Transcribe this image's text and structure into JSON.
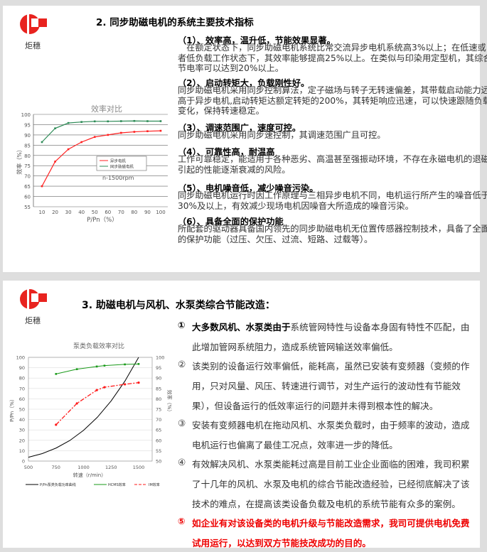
{
  "logo_text": "炬穗",
  "slide1": {
    "title": "2. 同步助磁电机的系统主要技术指标",
    "sections": [
      {
        "heading": "（1）、效率高，温升低，节能效果显著。",
        "lines": [
          "　在额定状态下，同步助磁电机系统比常交流异步电机系统高3%以上；在低速或",
          "者低负载工作状态下，其效率能够提高25%以上。在类似与印染用定型机，其综合",
          "节电率可以达到20%以上。"
        ]
      },
      {
        "heading": "（2）、启动转矩大，负载刚性好。",
        "lines": [
          "同步助磁电机采用同步控制算法，定子磁场与转子无转速偏差，其带载启动能力远",
          "高于异步电机,启动转矩达额定转矩的200%，其转矩响应迅速，可以快速跟随负载",
          "变化，保持转速稳定。"
        ]
      },
      {
        "heading": "（3）、调速范围广，速度可控。",
        "lines": [
          "同步助磁电机采用同步速控制，其调速范围广且可控。"
        ]
      },
      {
        "heading": "（4）、可靠性高，耐温高",
        "lines": [
          "工作可靠稳定，能适用于各种恶劣、高温甚至强振动环境，不存在永磁电机的退磁",
          "引起的性能逐渐衰减的风险。"
        ]
      },
      {
        "heading": "（5）、电机噪音低，减少噪音污染。",
        "lines": [
          "同步助磁电机运行时因工作原理与三相异步电机不同，电机运行所产生的噪音低于",
          "30%及以上，有效减少现场电机因噪音大所造成的噪音污染。"
        ]
      },
      {
        "heading": "（6）、具备全面的保护功能",
        "lines": [
          "所配套的驱动器具备国内领先的同步助磁电机无位置传感器控制技术，具备了全面",
          "的保护功能（过压、欠压、过流、短路、过载等）。"
        ]
      }
    ]
  },
  "slide2": {
    "title": "3. 助磁电机与风机、水泵类综合节能改造：",
    "items": [
      {
        "marker": "①",
        "bold_lead": "大多数风机、水泵类由于",
        "lines": [
          "系统管网特性与设备本身固有特性不匹配，由",
          "此增加管网系统阻力，造成系统管网输送效率偏低。"
        ]
      },
      {
        "marker": "②",
        "lines": [
          "该类别的设备运行效率偏低，能耗高，虽然已安装有变频器（变频的作",
          "用，只对风量、风压、转速进行调节，对生产运行的波动性有节能效",
          "果），但设备运行的低效率运行的问题并未得到根本性的解决。"
        ]
      },
      {
        "marker": "③",
        "lines": [
          "安装有变频器电机在拖动风机、水泵类负载时，由于频率的波动，造成",
          "电机运行也偏离了最佳工况点，效率进一步的降低。"
        ]
      },
      {
        "marker": "④",
        "lines": [
          "有效解决风机、水泵类能耗过高是目前工业企业面临的困难，我司积累",
          "了十几年的风机、水泵及电机的综合节能改造经验，已经彻底解决了该",
          "技术的难点，在提高该类设备负载及电机的系统节能有众多的案例。"
        ]
      },
      {
        "marker": "⑤",
        "highlight": true,
        "lines": [
          "如企业有对该设备类的电机升级与节能改造需求，我司可提供电机免费",
          "试用运行，以达到双方节能技改成功的目的。"
        ]
      }
    ]
  },
  "chart_data": [
    {
      "type": "line",
      "title": "效率对比",
      "xlabel": "P/Pn（%）",
      "ylabel": "效率（%）",
      "annotation": "n-1500rpm",
      "x": [
        10,
        20,
        30,
        40,
        50,
        60,
        70,
        80,
        90,
        100
      ],
      "ylim": [
        55,
        100
      ],
      "yticks": [
        55,
        60,
        65,
        70,
        75,
        80,
        85,
        90,
        95,
        100
      ],
      "grid": true,
      "legend": "center-right",
      "series": [
        {
          "name": "异步电机",
          "color": "#ff2020",
          "values": [
            65,
            77,
            83,
            86.5,
            89,
            90,
            91,
            91.5,
            91.8,
            92
          ]
        },
        {
          "name": "同步助磁电机",
          "color": "#2e8b57",
          "values": [
            86.5,
            93.2,
            95.8,
            96.3,
            96.6,
            96.6,
            96.7,
            96.8,
            96.7,
            96.7
          ]
        }
      ]
    },
    {
      "type": "line",
      "title": "泵类负载效率对比",
      "xlabel": "转速（r/min）",
      "ylabel": "P/Pn（%）",
      "ylabel_right": "效率（%）",
      "xlim": [
        500,
        1625
      ],
      "xticks": [
        500,
        750,
        1000,
        1250,
        1500
      ],
      "ylim": [
        0,
        100
      ],
      "yticks": [
        0,
        10,
        20,
        30,
        40,
        50,
        60,
        70,
        80,
        90,
        100
      ],
      "ylim_right": [
        50,
        100
      ],
      "yticks_right": [
        50,
        55,
        60,
        65,
        70,
        75,
        80,
        85,
        90,
        95,
        100
      ],
      "grid": true,
      "legend": "bottom",
      "series": [
        {
          "name": "P/Pn泵类负载功率曲线",
          "axis": "left",
          "color": "#000000",
          "x": [
            500,
            625,
            750,
            875,
            1000,
            1125,
            1250,
            1375,
            1500
          ],
          "values": [
            3.7,
            7.2,
            12.5,
            19.8,
            29.6,
            42.2,
            57.9,
            77.0,
            100
          ]
        },
        {
          "name": "HCMS效率",
          "axis": "right",
          "color": "#1a9a1a",
          "x": [
            750,
            940,
            1120,
            1190,
            1375,
            1500
          ],
          "values": [
            92,
            94.3,
            95.6,
            96,
            96.6,
            96.8
          ]
        },
        {
          "name": "IM效率",
          "axis": "right",
          "color": "#ff1a1a",
          "x": [
            750,
            940,
            1120,
            1190,
            1375,
            1500
          ],
          "values": [
            67.5,
            77.8,
            84.2,
            85.6,
            87,
            87.8
          ]
        }
      ]
    }
  ]
}
